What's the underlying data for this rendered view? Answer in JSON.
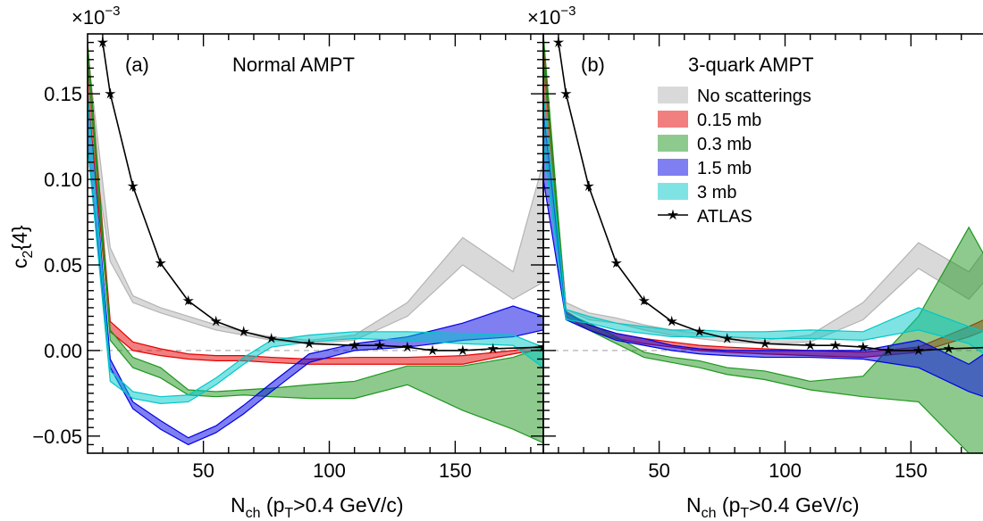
{
  "chart_data": [
    {
      "type": "area",
      "panel_label": "(a)",
      "title": "Normal AMPT",
      "xlabel": {
        "main": "N",
        "sub_ch": "ch",
        "mid": " (p",
        "sub_t": "T",
        "tail": ">0.4 GeV/c)"
      },
      "ylabel": {
        "main": "c",
        "sub": "2",
        "tail": "{4}"
      },
      "scale_label": {
        "base": "×10",
        "exp": "−3"
      },
      "xlim": [
        4,
        185
      ],
      "ylim": [
        -0.06,
        0.185
      ],
      "xticks": [
        50,
        100,
        150
      ],
      "xtick_labels": [
        "50",
        "100",
        "150"
      ],
      "yticks": [
        -0.05,
        0.0,
        0.05,
        0.1,
        0.15
      ],
      "ytick_labels": [
        "−0.05",
        "0.00",
        "0.05",
        "0.10",
        "0.15"
      ],
      "reference_line": 0,
      "series": [
        {
          "name": "No scatterings",
          "color": "#b4b4b4",
          "x": [
            4,
            13,
            22,
            33,
            44,
            55,
            66,
            77,
            92,
            110,
            131,
            153,
            173,
            185
          ],
          "low": [
            0.14,
            0.052,
            0.028,
            0.022,
            0.017,
            0.012,
            0.009,
            0.006,
            0.004,
            0.006,
            0.02,
            0.05,
            0.03,
            0.04
          ],
          "high": [
            0.175,
            0.06,
            0.032,
            0.025,
            0.02,
            0.015,
            0.011,
            0.008,
            0.006,
            0.009,
            0.028,
            0.066,
            0.046,
            0.11
          ]
        },
        {
          "name": "0.15 mb",
          "color": "#e60000",
          "x": [
            4,
            13,
            22,
            33,
            44,
            55,
            66,
            77,
            92,
            110,
            131,
            153,
            173,
            185
          ],
          "low": [
            0.15,
            0.011,
            0.0,
            -0.003,
            -0.005,
            -0.006,
            -0.006,
            -0.007,
            -0.008,
            -0.008,
            -0.008,
            -0.008,
            -0.002,
            0.001
          ],
          "high": [
            0.18,
            0.017,
            0.005,
            0.001,
            -0.002,
            -0.003,
            -0.003,
            -0.004,
            -0.005,
            -0.004,
            -0.004,
            -0.003,
            0.0,
            0.003
          ]
        },
        {
          "name": "0.3 mb",
          "color": "#1e961e",
          "x": [
            4,
            13,
            22,
            33,
            44,
            55,
            66,
            77,
            92,
            110,
            131,
            153,
            173,
            185
          ],
          "low": [
            0.17,
            0.006,
            -0.01,
            -0.016,
            -0.026,
            -0.027,
            -0.026,
            -0.027,
            -0.028,
            -0.028,
            -0.02,
            -0.035,
            -0.046,
            -0.054
          ],
          "high": [
            0.18,
            0.012,
            -0.004,
            -0.01,
            -0.023,
            -0.024,
            -0.023,
            -0.022,
            -0.02,
            -0.018,
            -0.009,
            -0.009,
            -0.004,
            0.002
          ]
        },
        {
          "name": "1.5 mb",
          "color": "#0000e6",
          "x": [
            4,
            13,
            22,
            33,
            44,
            55,
            66,
            77,
            92,
            110,
            131,
            153,
            173,
            185
          ],
          "low": [
            0.12,
            -0.01,
            -0.034,
            -0.046,
            -0.055,
            -0.048,
            -0.037,
            -0.024,
            -0.007,
            0.0,
            0.002,
            0.006,
            0.008,
            0.012
          ],
          "high": [
            0.15,
            -0.005,
            -0.03,
            -0.041,
            -0.051,
            -0.044,
            -0.032,
            -0.019,
            -0.002,
            0.004,
            0.008,
            0.016,
            0.026,
            0.02
          ]
        },
        {
          "name": "3 mb",
          "color": "#00c8c8",
          "x": [
            4,
            13,
            22,
            33,
            44,
            55,
            66,
            77,
            92,
            110,
            131,
            153,
            173,
            185
          ],
          "low": [
            0.12,
            -0.018,
            -0.028,
            -0.031,
            -0.03,
            -0.02,
            -0.008,
            0.002,
            0.005,
            0.007,
            0.006,
            0.004,
            0.003,
            -0.01
          ],
          "high": [
            0.15,
            -0.012,
            -0.024,
            -0.027,
            -0.026,
            -0.016,
            -0.004,
            0.006,
            0.009,
            0.011,
            0.011,
            0.01,
            0.009,
            0.002
          ]
        },
        {
          "name": "ATLAS",
          "color": "#000000",
          "kind": "line",
          "x": [
            10,
            13,
            22,
            33,
            44,
            55,
            66,
            77,
            92,
            110,
            120,
            131,
            141,
            153,
            165,
            185
          ],
          "y": [
            0.18,
            0.15,
            0.096,
            0.051,
            0.029,
            0.017,
            0.011,
            0.007,
            0.004,
            0.003,
            0.003,
            0.002,
            0.0,
            0.0,
            0.001,
            0.002
          ],
          "err": [
            0.003,
            0.003,
            0.003,
            0.002,
            0.002,
            0.001,
            0.001,
            0.001,
            0.001,
            0.001,
            0.001,
            0.001,
            0.001,
            0.001,
            0.001,
            0.001
          ]
        }
      ]
    },
    {
      "type": "area",
      "panel_label": "(b)",
      "title": "3-quark AMPT",
      "xlabel": {
        "main": "N",
        "sub_ch": "ch",
        "mid": " (p",
        "sub_t": "T",
        "tail": ">0.4 GeV/c)"
      },
      "scale_label": {
        "base": "×10",
        "exp": "−3"
      },
      "xlim": [
        4,
        185
      ],
      "ylim": [
        -0.06,
        0.185
      ],
      "xticks": [
        50,
        100,
        150
      ],
      "xtick_labels": [
        "50",
        "100",
        "150"
      ],
      "yticks": [
        -0.05,
        0.0,
        0.05,
        0.1,
        0.15
      ],
      "reference_line": 0,
      "legend_position": "top-right",
      "series": [
        {
          "name": "No scatterings",
          "color": "#b4b4b4",
          "x": [
            4,
            13,
            22,
            33,
            44,
            55,
            66,
            77,
            92,
            110,
            131,
            153,
            173,
            185
          ],
          "low": [
            0.12,
            0.024,
            0.018,
            0.016,
            0.012,
            0.009,
            0.007,
            0.005,
            0.004,
            0.005,
            0.018,
            0.048,
            0.03,
            0.05
          ],
          "high": [
            0.175,
            0.028,
            0.022,
            0.019,
            0.015,
            0.012,
            0.01,
            0.008,
            0.006,
            0.009,
            0.028,
            0.063,
            0.046,
            0.07
          ]
        },
        {
          "name": "0.15 mb",
          "color": "#e60000",
          "x": [
            4,
            13,
            22,
            33,
            44,
            55,
            66,
            77,
            92,
            110,
            131,
            153,
            173,
            185
          ],
          "low": [
            0.15,
            0.02,
            0.012,
            0.007,
            0.004,
            0.002,
            0.0,
            -0.001,
            -0.002,
            -0.003,
            -0.004,
            -0.001,
            0.008,
            0.015
          ],
          "high": [
            0.18,
            0.023,
            0.015,
            0.01,
            0.007,
            0.005,
            0.003,
            0.002,
            0.001,
            0.0,
            -0.001,
            0.002,
            0.014,
            0.022
          ]
        },
        {
          "name": "0.3 mb",
          "color": "#1e961e",
          "x": [
            4,
            13,
            22,
            33,
            44,
            55,
            66,
            77,
            92,
            110,
            131,
            153,
            173,
            185
          ],
          "low": [
            0.17,
            0.018,
            0.012,
            0.004,
            -0.004,
            -0.007,
            -0.01,
            -0.014,
            -0.017,
            -0.023,
            -0.027,
            -0.03,
            -0.06,
            -0.06
          ],
          "high": [
            0.185,
            0.022,
            0.016,
            0.008,
            -0.001,
            -0.004,
            -0.006,
            -0.01,
            -0.012,
            -0.018,
            -0.015,
            0.02,
            0.072,
            0.04
          ]
        },
        {
          "name": "1.5 mb",
          "color": "#0000e6",
          "x": [
            4,
            13,
            22,
            33,
            44,
            55,
            66,
            77,
            92,
            110,
            131,
            153,
            173,
            185
          ],
          "low": [
            0.1,
            0.018,
            0.012,
            0.006,
            0.003,
            0.0,
            -0.002,
            -0.003,
            -0.004,
            -0.004,
            -0.005,
            -0.01,
            -0.024,
            -0.03
          ],
          "high": [
            0.14,
            0.022,
            0.015,
            0.01,
            0.007,
            0.003,
            0.001,
            0.0,
            0.0,
            0.0,
            0.0,
            0.006,
            -0.008,
            0.004
          ]
        },
        {
          "name": "3 mb",
          "color": "#00c8c8",
          "x": [
            4,
            13,
            22,
            33,
            44,
            55,
            66,
            77,
            92,
            110,
            131,
            153,
            173,
            185
          ],
          "low": [
            0.12,
            0.018,
            0.016,
            0.012,
            0.01,
            0.008,
            0.008,
            0.008,
            0.007,
            0.007,
            0.006,
            0.012,
            0.004,
            -0.008
          ],
          "high": [
            0.15,
            0.024,
            0.02,
            0.016,
            0.014,
            0.012,
            0.012,
            0.011,
            0.011,
            0.012,
            0.011,
            0.025,
            0.014,
            0.008
          ]
        },
        {
          "name": "ATLAS",
          "color": "#000000",
          "kind": "line",
          "x": [
            10,
            13,
            22,
            33,
            44,
            55,
            66,
            77,
            92,
            110,
            120,
            131,
            141,
            153,
            165,
            185
          ],
          "y": [
            0.18,
            0.15,
            0.096,
            0.051,
            0.029,
            0.017,
            0.011,
            0.007,
            0.004,
            0.003,
            0.003,
            0.002,
            0.0,
            0.0,
            0.001,
            0.002
          ],
          "err": [
            0.003,
            0.003,
            0.003,
            0.002,
            0.002,
            0.001,
            0.001,
            0.001,
            0.001,
            0.001,
            0.001,
            0.001,
            0.001,
            0.001,
            0.001,
            0.001
          ]
        }
      ]
    }
  ]
}
